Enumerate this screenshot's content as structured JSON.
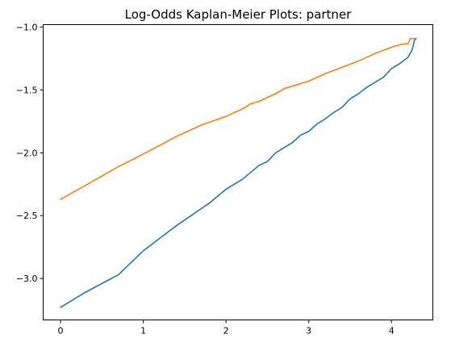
{
  "chart_data": {
    "type": "line",
    "title": "Log-Odds Kaplan-Meier Plots: partner",
    "xlabel": "",
    "ylabel": "",
    "xlim": [
      -0.21,
      4.5
    ],
    "ylim": [
      -3.33,
      -0.98
    ],
    "xticks": [
      0,
      1,
      2,
      3,
      4
    ],
    "yticks": [
      -3.0,
      -2.5,
      -2.0,
      -1.5,
      -1.0
    ],
    "xtick_labels": [
      "0",
      "1",
      "2",
      "3",
      "4"
    ],
    "ytick_labels": [
      "−3.0",
      "−2.5",
      "−2.0",
      "−1.5",
      "−1.0"
    ],
    "grid": false,
    "legend": false,
    "series": [
      {
        "color": "#1f77b4",
        "points": [
          [
            0.0,
            -3.23
          ],
          [
            0.3,
            -3.11
          ],
          [
            0.7,
            -2.97
          ],
          [
            1.0,
            -2.78
          ],
          [
            1.4,
            -2.58
          ],
          [
            1.8,
            -2.4
          ],
          [
            2.0,
            -2.29
          ],
          [
            2.2,
            -2.21
          ],
          [
            2.4,
            -2.1
          ],
          [
            2.5,
            -2.07
          ],
          [
            2.6,
            -2.0
          ],
          [
            2.8,
            -1.92
          ],
          [
            2.9,
            -1.86
          ],
          [
            3.0,
            -1.83
          ],
          [
            3.1,
            -1.77
          ],
          [
            3.2,
            -1.73
          ],
          [
            3.3,
            -1.68
          ],
          [
            3.4,
            -1.64
          ],
          [
            3.5,
            -1.57
          ],
          [
            3.6,
            -1.53
          ],
          [
            3.7,
            -1.48
          ],
          [
            3.8,
            -1.44
          ],
          [
            3.9,
            -1.4
          ],
          [
            4.0,
            -1.33
          ],
          [
            4.1,
            -1.29
          ],
          [
            4.2,
            -1.24
          ],
          [
            4.25,
            -1.18
          ],
          [
            4.28,
            -1.1
          ],
          [
            4.3,
            -1.09
          ]
        ]
      },
      {
        "color": "#ff7f0e",
        "points": [
          [
            0.0,
            -2.37
          ],
          [
            0.3,
            -2.26
          ],
          [
            0.7,
            -2.11
          ],
          [
            1.0,
            -2.01
          ],
          [
            1.4,
            -1.87
          ],
          [
            1.7,
            -1.78
          ],
          [
            2.0,
            -1.71
          ],
          [
            2.2,
            -1.65
          ],
          [
            2.3,
            -1.61
          ],
          [
            2.4,
            -1.59
          ],
          [
            2.6,
            -1.53
          ],
          [
            2.7,
            -1.49
          ],
          [
            2.8,
            -1.47
          ],
          [
            3.0,
            -1.43
          ],
          [
            3.2,
            -1.37
          ],
          [
            3.4,
            -1.32
          ],
          [
            3.6,
            -1.27
          ],
          [
            3.8,
            -1.21
          ],
          [
            4.0,
            -1.16
          ],
          [
            4.1,
            -1.14
          ],
          [
            4.2,
            -1.13
          ],
          [
            4.23,
            -1.09
          ],
          [
            4.3,
            -1.09
          ]
        ]
      }
    ]
  }
}
